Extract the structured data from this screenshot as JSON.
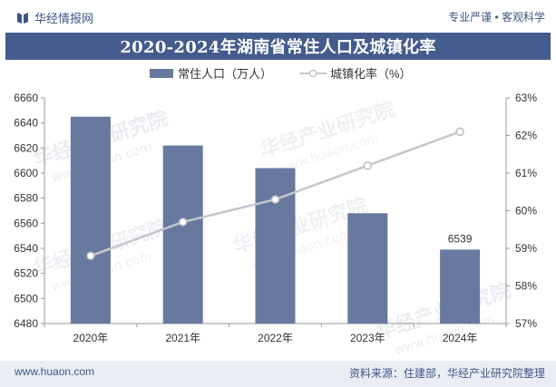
{
  "header": {
    "brand": "华经情报网",
    "slogan": "专业严谨 • 客观科学"
  },
  "title": "2020-2024年湖南省常住人口及城镇化率",
  "watermark": {
    "text": "华经产业研究院",
    "url": "www.huaon.com"
  },
  "footer": {
    "left": "www.huaon.com",
    "right": "资料来源：住建部，华经产业研究院整理"
  },
  "colors": {
    "bar": "#67799f",
    "line": "#c4c7cc",
    "brand": "#3c5687",
    "title_bg": "#435b8d"
  },
  "chart_data": {
    "type": "bar",
    "categories": [
      "2020年",
      "2021年",
      "2022年",
      "2023年",
      "2024年"
    ],
    "series": [
      {
        "name": "常住人口（万人）",
        "type": "bar",
        "axis": "left",
        "values": [
          6645,
          6622,
          6604,
          6568,
          6539
        ]
      },
      {
        "name": "城镇化率（%）",
        "type": "line",
        "axis": "right",
        "values": [
          58.8,
          59.7,
          60.3,
          61.2,
          62.1
        ]
      }
    ],
    "data_labels": [
      {
        "category": "2024年",
        "series": "常住人口（万人）",
        "text": "6539"
      }
    ],
    "ylim_left": [
      6480,
      6660
    ],
    "yticks_left": [
      "6480",
      "6500",
      "6520",
      "6540",
      "6560",
      "6580",
      "6600",
      "6620",
      "6640",
      "6660"
    ],
    "ylim_right": [
      57,
      63
    ],
    "yticks_right": [
      "57%",
      "58%",
      "59%",
      "60%",
      "61%",
      "62%",
      "63%"
    ],
    "legend_position": "top-center",
    "grid": false
  }
}
